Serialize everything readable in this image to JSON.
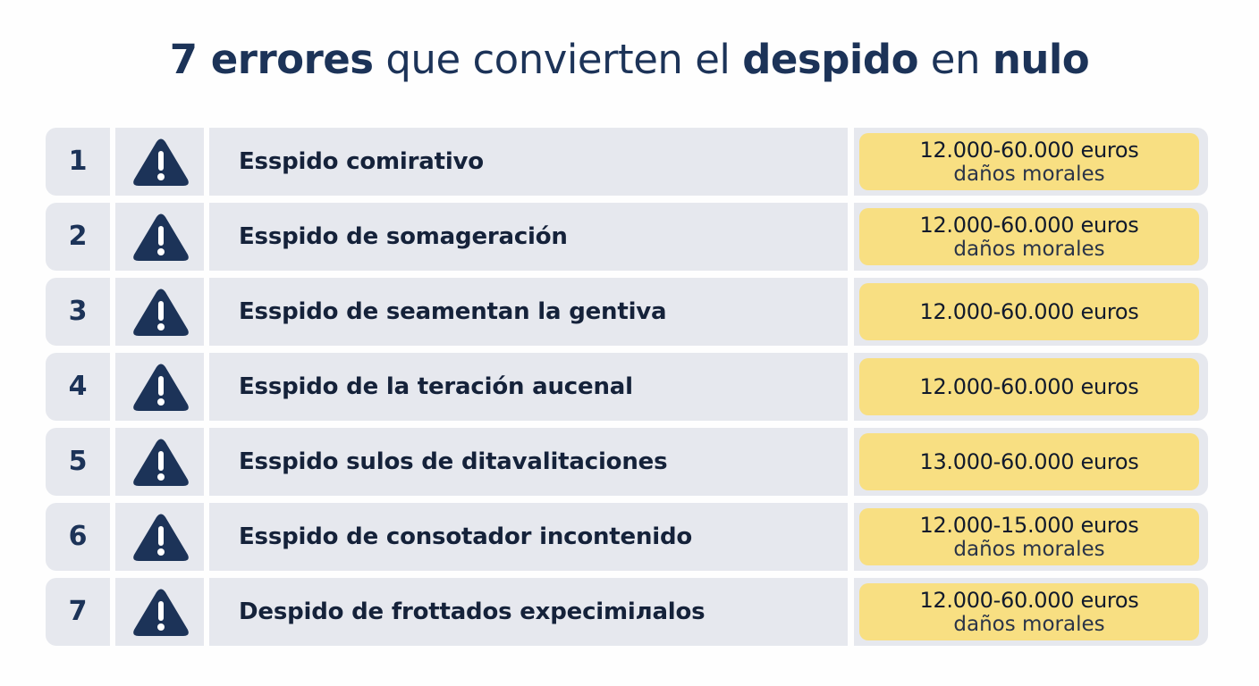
{
  "title": {
    "part1": "7 errores",
    "part2": " que convierten el ",
    "part3": "despido",
    "part4": " en ",
    "part5": "nulo"
  },
  "rows": [
    {
      "num": "1",
      "label": "Esspido comirativo",
      "amount": "12.000-60.000 euros",
      "sub": "daños morales"
    },
    {
      "num": "2",
      "label": "Esspido de somageración",
      "amount": "12.000-60.000 euros",
      "sub": "daños morales"
    },
    {
      "num": "3",
      "label": "Esspido de seamentan la gentiva",
      "amount": "12.000-60.000 euros",
      "sub": ""
    },
    {
      "num": "4",
      "label": "Esspido de la teración aucenal",
      "amount": "12.000-60.000 euros",
      "sub": ""
    },
    {
      "num": "5",
      "label": "Esspido sulos de ditavalitaciones",
      "amount": "13.000-60.000 euros",
      "sub": ""
    },
    {
      "num": "6",
      "label": "Esspido de consotador incontenido",
      "amount": "12.000-15.000 euros",
      "sub": "daños morales"
    },
    {
      "num": "7",
      "label": "Despido de frottados expecimiлalos",
      "amount": "12.000-60.000 euros",
      "sub": "daños morales"
    }
  ],
  "icon": "warning-triangle-icon",
  "colors": {
    "navy": "#1c3358",
    "row_bg": "#e6e8ee",
    "amount_bg": "#f8df82"
  }
}
